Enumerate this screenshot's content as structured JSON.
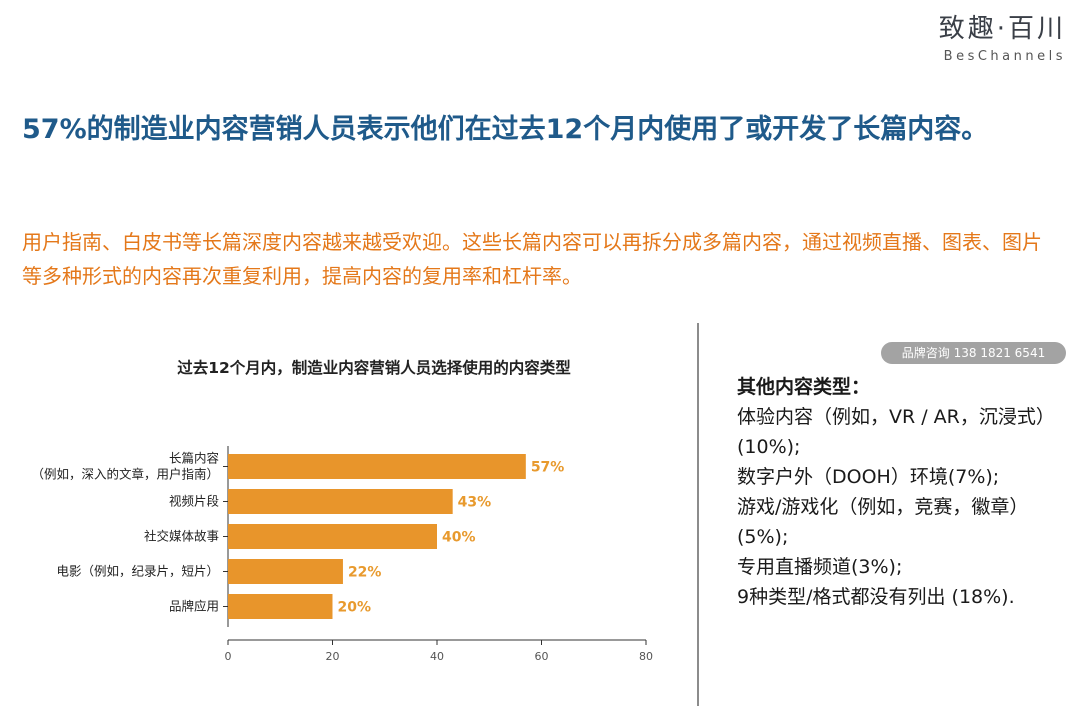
{
  "logo": {
    "cn": "致趣·百川",
    "en": "BesChannels"
  },
  "headline": "57%的制造业内容营销人员表示他们在过去12个月内使用了或开发了长篇内容。",
  "subtitle": "用户指南、白皮书等长篇深度内容越来越受欢迎。这些长篇内容可以再拆分成多篇内容，通过视频直播、图表、图片等多种形式的内容再次重复利用，提高内容的复用率和杠杆率。",
  "watermark": "品牌咨询 138 1821 6541",
  "colors": {
    "bar": "#e8952b",
    "label": "#e89a2e",
    "headline": "#1f5a8a",
    "subtitle": "#e4781a"
  },
  "chart_data": {
    "type": "bar",
    "orientation": "horizontal",
    "title": "过去12个月内，制造业内容营销人员选择使用的内容类型",
    "categories": [
      [
        "长篇内容",
        "（例如，深入的文章，用户指南）"
      ],
      [
        "视频片段"
      ],
      [
        "社交媒体故事"
      ],
      [
        "电影（例如，纪录片，短片）"
      ],
      [
        "品牌应用"
      ]
    ],
    "values": [
      57,
      43,
      40,
      22,
      20
    ],
    "value_labels": [
      "57%",
      "43%",
      "40%",
      "22%",
      "20%"
    ],
    "xlim": [
      0,
      80
    ],
    "xticks": [
      0,
      20,
      40,
      60,
      80
    ],
    "grid": false
  },
  "other": {
    "title": "其他内容类型：",
    "items": [
      "体验内容（例如，VR / AR，沉浸式）(10%);",
      "数字户外（DOOH）环境(7%);",
      " 游戏/游戏化（例如，竞赛，徽章）(5%);",
      "专用直播频道(3%);",
      "9种类型/格式都没有列出 (18%)."
    ]
  }
}
